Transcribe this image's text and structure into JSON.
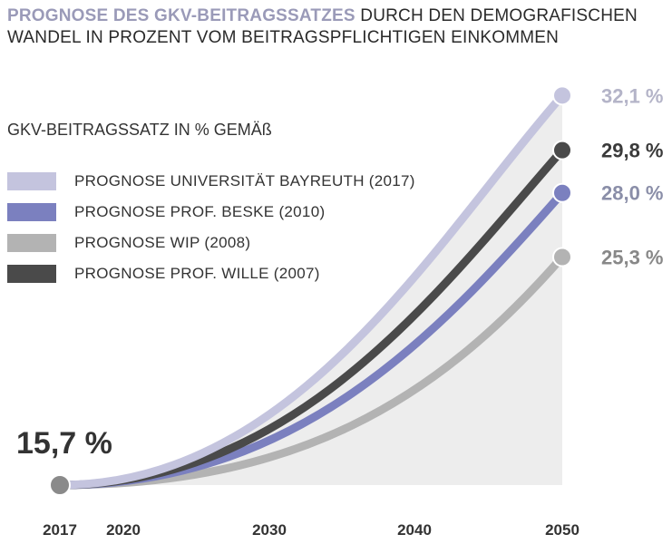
{
  "chart_data": {
    "type": "line",
    "title_highlight": "PROGNOSE DES GKV-BEITRAGSSATZES",
    "title_rest": " DURCH DEN DEMOGRAFISCHEN WANDEL IN PROZENT VOM BEITRAGSPFLICHTIGEN EINKOMMEN",
    "legend_title": "GKV-BEITRAGSSATZ IN % GEMÄß",
    "x_ticks": [
      "2017",
      "2020",
      "2030",
      "2040",
      "2050"
    ],
    "start": {
      "year": 2017,
      "value": 15.7,
      "label": "15,7 %",
      "color": "#8a8a8a"
    },
    "series": [
      {
        "name": "PROGNOSE UNIVERSITÄT BAYREUTH (2017)",
        "color": "#c4c4de",
        "label_color": "#b4b4c8",
        "end_value": 32.1,
        "end_label": "32,1 %"
      },
      {
        "name": "PROGNOSE PROF. BESKE (2010)",
        "color": "#7b80bf",
        "label_color": "#8a8ea8",
        "end_value": 28.0,
        "end_label": "28,0 %"
      },
      {
        "name": "PROGNOSE WIP (2008)",
        "color": "#b3b3b3",
        "label_color": "#888888",
        "end_value": 25.3,
        "end_label": "25,3 %"
      },
      {
        "name": "PROGNOSE PROF. WILLE (2007)",
        "color": "#4a4a4a",
        "label_color": "#3a3a3a",
        "end_value": 29.8,
        "end_label": "29,8 %"
      }
    ],
    "x_range": [
      2017,
      2050
    ],
    "area_fill": "#ededed",
    "grid": false,
    "legend_placement": "top-left"
  }
}
